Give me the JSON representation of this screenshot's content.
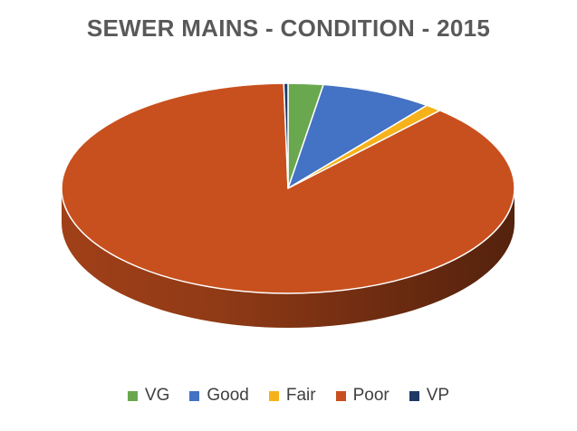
{
  "chart_data": {
    "type": "pie",
    "style": "3d",
    "title": "SEWER MAINS - CONDITION - 2015",
    "legend_position": "bottom",
    "categories": [
      "VG",
      "Good",
      "Fair",
      "Poor",
      "VP"
    ],
    "values": [
      2.5,
      8.0,
      1.2,
      88.0,
      0.3
    ],
    "unit": "percent",
    "colors": [
      "#6AA84F",
      "#4472C4",
      "#F6B21B",
      "#C8501E",
      "#1F3864"
    ]
  }
}
